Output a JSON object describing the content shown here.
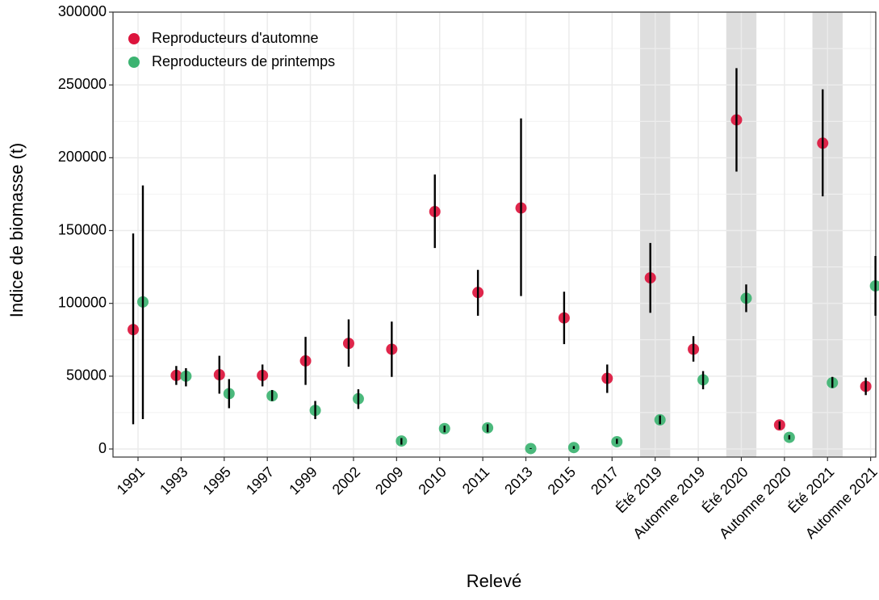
{
  "chart_data": {
    "type": "dot-errorbar",
    "x_label": "Relevé",
    "y_label": "Indice de biomasse (t)",
    "categories": [
      "1991",
      "1993",
      "1995",
      "1997",
      "1999",
      "2002",
      "2009",
      "2010",
      "2011",
      "2013",
      "2015",
      "2017",
      "Été 2019",
      "Automne 2019",
      "Été 2020",
      "Automne 2020",
      "Été 2021",
      "Automne 2021"
    ],
    "shaded_indices": [
      12,
      14,
      16
    ],
    "shade_color": "#dedede",
    "ylim": [
      0,
      300000
    ],
    "yticks": [
      0,
      50000,
      100000,
      150000,
      200000,
      250000,
      300000
    ],
    "grid": true,
    "legend": "top-left",
    "series": [
      {
        "name": "Reproducteurs d'automne",
        "color": "#dc143c",
        "values": [
          82000,
          50500,
          51000,
          50500,
          60500,
          72500,
          68500,
          163000,
          107500,
          165500,
          90000,
          48500,
          117500,
          68500,
          226000,
          16500,
          210000,
          43000
        ],
        "lower": [
          17000,
          44000,
          38000,
          43000,
          44000,
          56500,
          49500,
          138000,
          91500,
          105000,
          72000,
          38500,
          93500,
          60000,
          190500,
          13500,
          173500,
          37000
        ],
        "upper": [
          148000,
          57000,
          64000,
          58000,
          77000,
          89000,
          87500,
          188500,
          123000,
          227000,
          108000,
          58000,
          141500,
          77500,
          261500,
          19000,
          247000,
          49000
        ]
      },
      {
        "name": "Reproducteurs de printemps",
        "color": "#3cb371",
        "values": [
          101000,
          50000,
          38000,
          36500,
          26500,
          34500,
          5500,
          14000,
          14500,
          300,
          1000,
          5000,
          20000,
          47500,
          103500,
          8000,
          45500,
          112000
        ],
        "lower": [
          20500,
          43000,
          28000,
          33000,
          20500,
          27500,
          3000,
          11500,
          11500,
          0,
          0,
          3500,
          17000,
          41000,
          94000,
          6500,
          42000,
          91500
        ],
        "upper": [
          181000,
          55500,
          48000,
          40500,
          33000,
          41000,
          7500,
          16000,
          17000,
          600,
          2000,
          7000,
          23000,
          53500,
          113000,
          9500,
          49500,
          132500
        ]
      }
    ]
  }
}
